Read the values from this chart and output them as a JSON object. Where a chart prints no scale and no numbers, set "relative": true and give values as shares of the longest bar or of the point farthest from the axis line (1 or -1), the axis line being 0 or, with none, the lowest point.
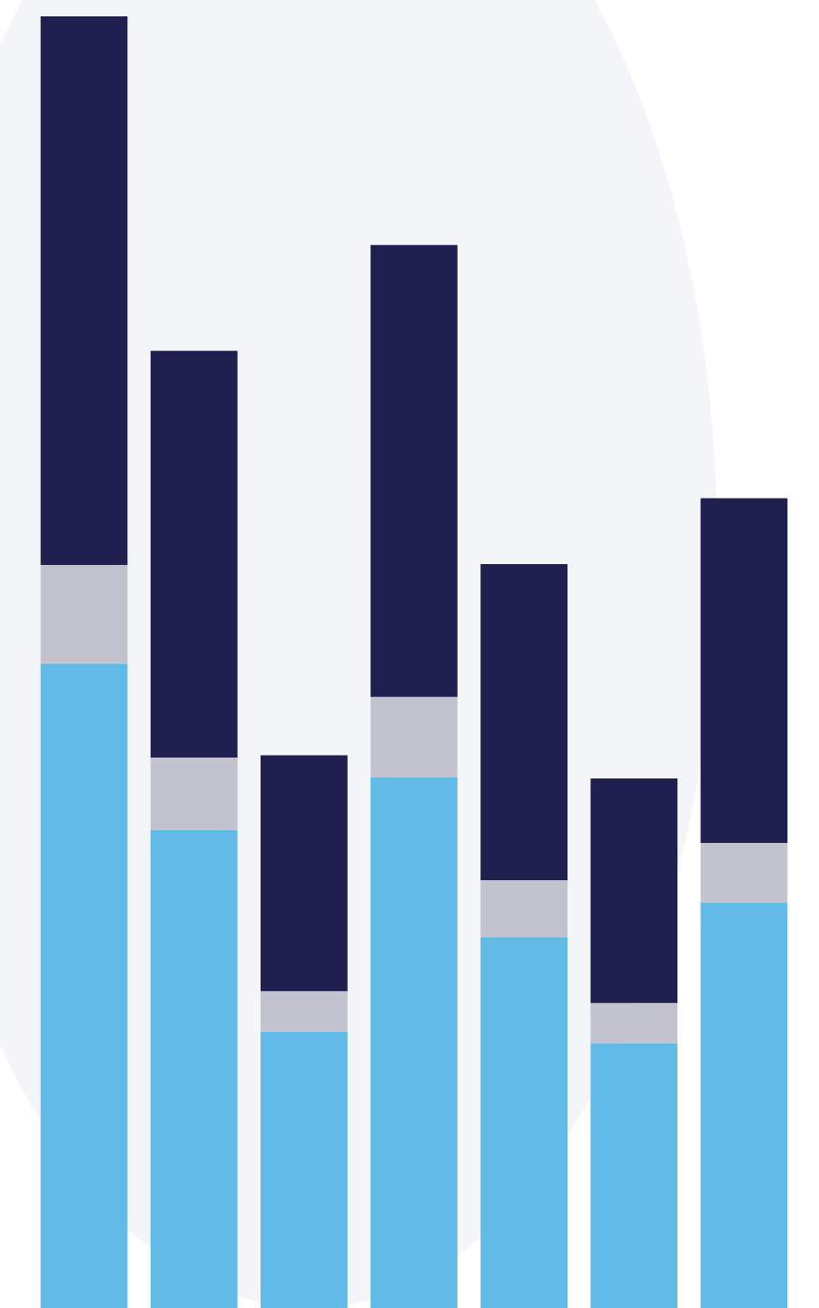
{
  "chart_data": {
    "type": "bar",
    "relative": true,
    "stacked": true,
    "categories": [
      null,
      null,
      null,
      null,
      null,
      null,
      null
    ],
    "series": [
      {
        "color": "#62bae6",
        "values": [
          0.499,
          0.37,
          0.214,
          0.411,
          0.287,
          0.205,
          0.314
        ]
      },
      {
        "color": "#c3c3d0",
        "values": [
          0.076,
          0.056,
          0.031,
          0.062,
          0.044,
          0.031,
          0.046
        ]
      },
      {
        "color": "#1f1f50",
        "values": [
          0.425,
          0.315,
          0.183,
          0.35,
          0.245,
          0.174,
          0.267
        ]
      }
    ]
  }
}
